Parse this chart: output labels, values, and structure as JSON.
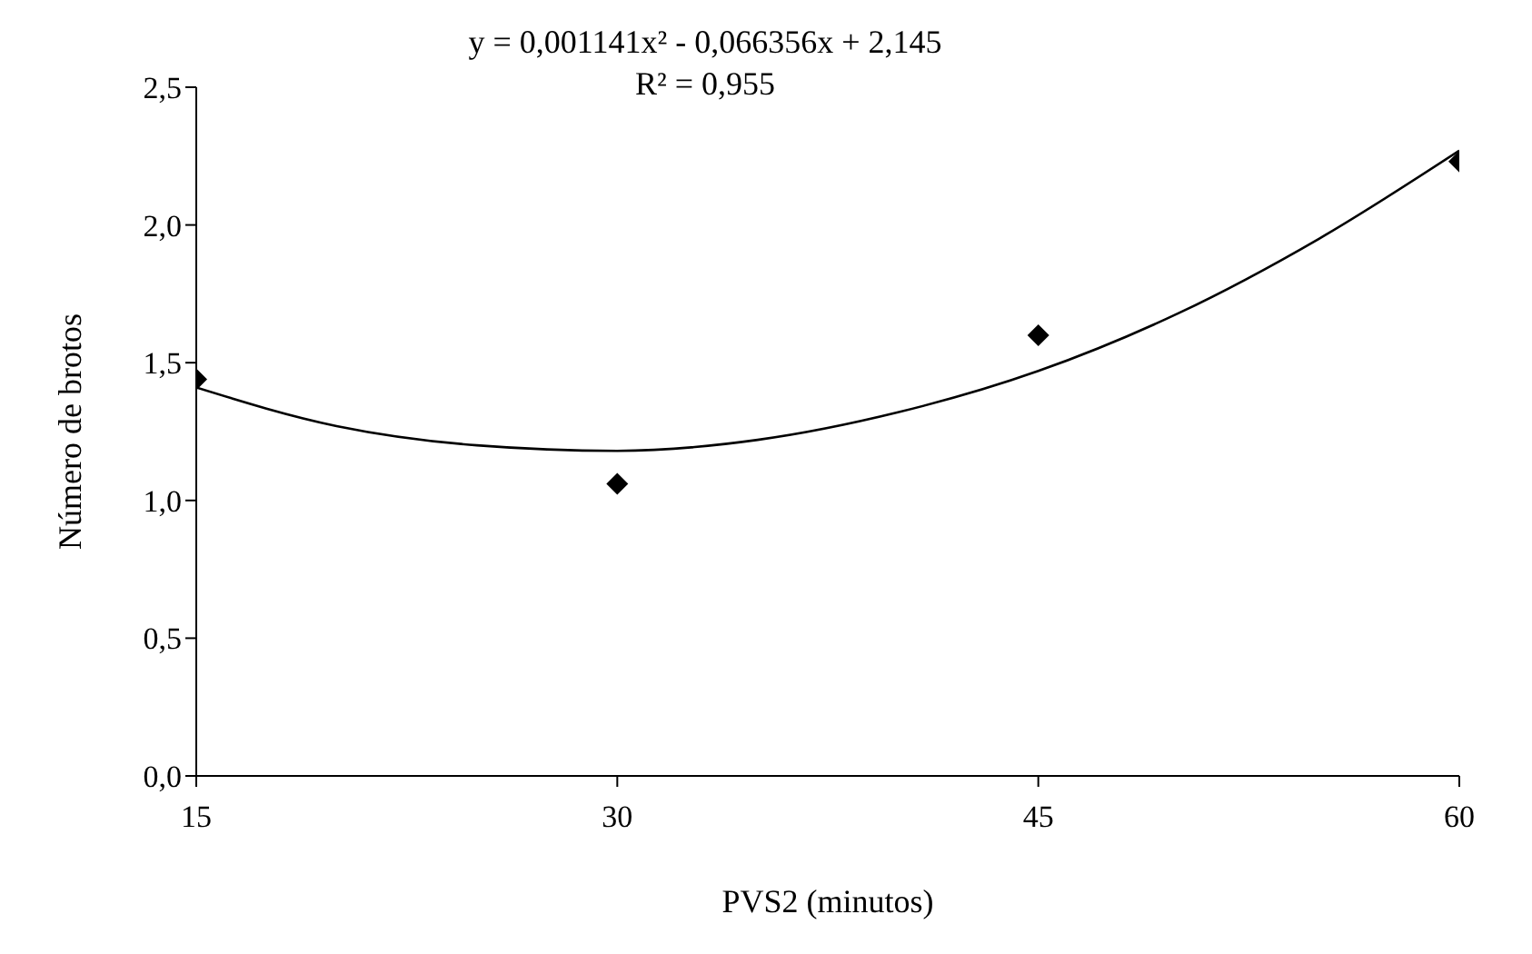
{
  "chart_data": {
    "type": "scatter",
    "xlabel": "PVS2 (minutos)",
    "ylabel": "Número de brotos",
    "annotations": [
      "y = 0,001141x² - 0,066356x + 2,145",
      "R² = 0,955"
    ],
    "x": [
      15,
      30,
      45,
      60
    ],
    "series": [
      {
        "color": "#000000",
        "marker": "diamond",
        "values": [
          1.44,
          1.06,
          1.6,
          2.23
        ]
      },
      {
        "type": "line",
        "color": "#000000",
        "marker": "none",
        "x": [
          15,
          20,
          25,
          30,
          35,
          40,
          45,
          50,
          55,
          60
        ],
        "values": [
          1.41,
          1.27,
          1.2,
          1.18,
          1.22,
          1.32,
          1.47,
          1.68,
          1.95,
          2.27
        ]
      }
    ],
    "xlim": [
      15,
      60
    ],
    "xticks": [
      15,
      30,
      45,
      60
    ],
    "ylim": [
      0,
      2.5
    ],
    "yticks": [
      {
        "value": 0,
        "label": "0,0"
      },
      {
        "value": 0.5,
        "label": "0,5"
      },
      {
        "value": 1,
        "label": "1,0"
      },
      {
        "value": 1.5,
        "label": "1,5"
      },
      {
        "value": 2,
        "label": "2,0"
      },
      {
        "value": 2.5,
        "label": "2,5"
      }
    ],
    "grid": false
  }
}
